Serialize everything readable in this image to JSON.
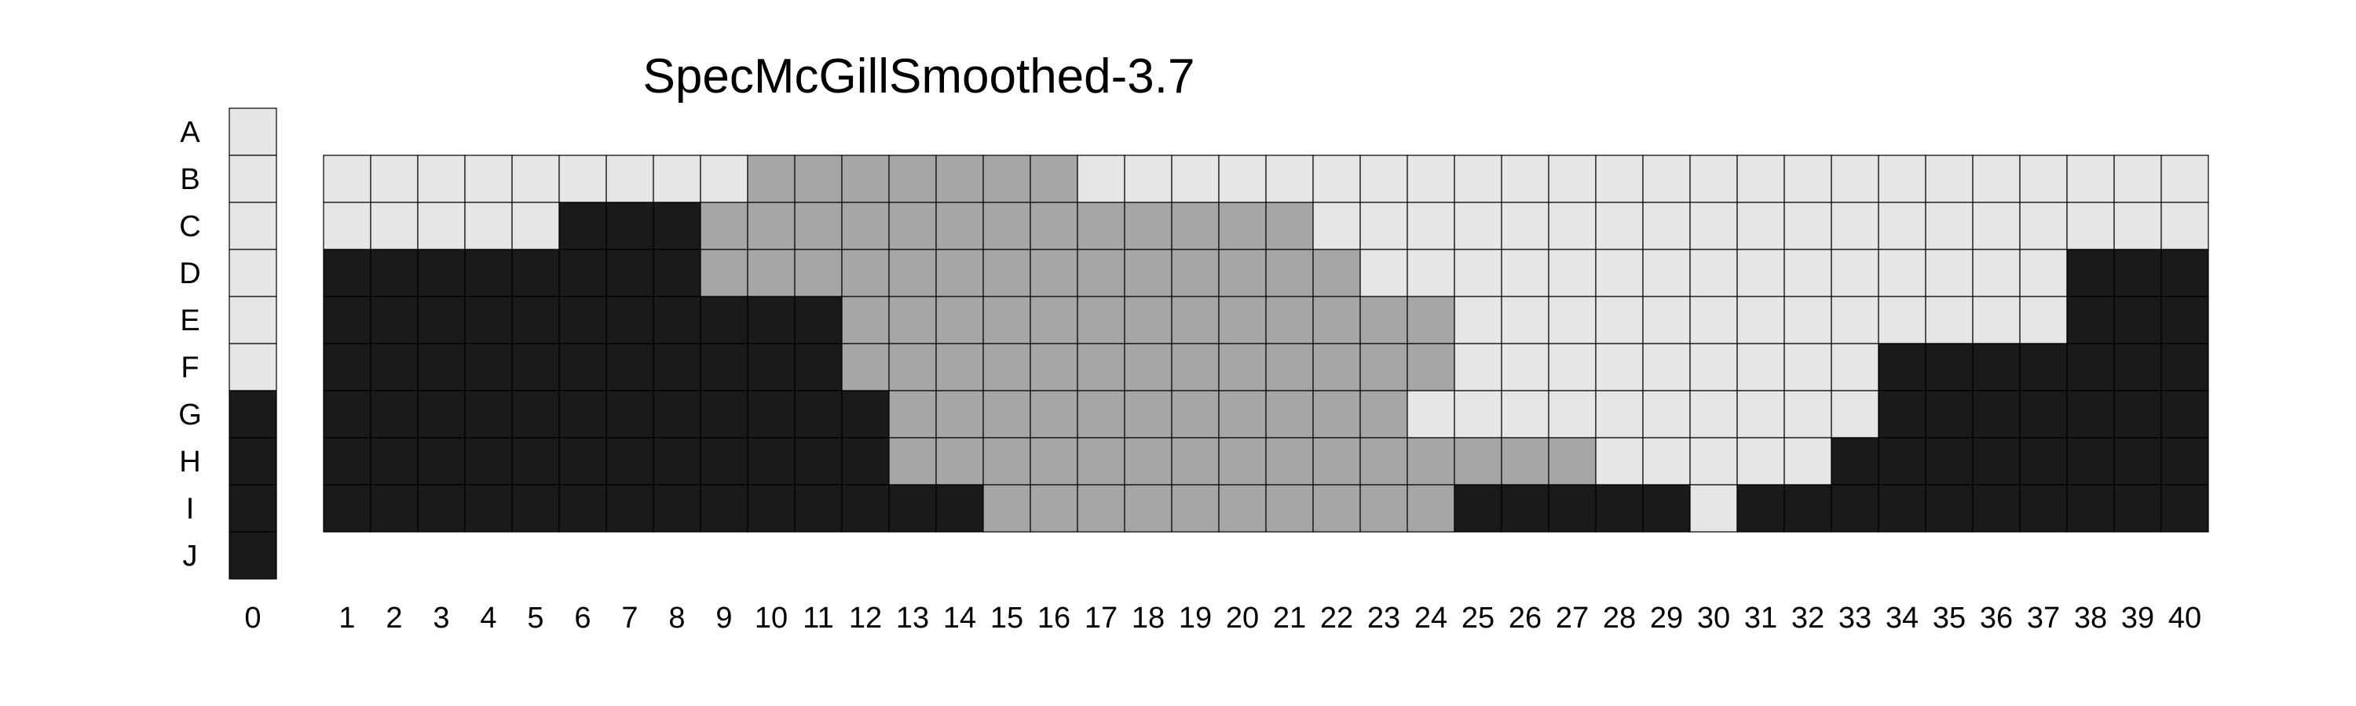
{
  "chart_data": {
    "type": "heatmap",
    "title": "SpecMcGillSmoothed-3.7",
    "xlabel": "",
    "ylabel": "",
    "rows": [
      "A",
      "B",
      "C",
      "D",
      "E",
      "F",
      "G",
      "H",
      "I",
      "J"
    ],
    "column_zero": {
      "label": "0",
      "values": [
        "L",
        "L",
        "L",
        "L",
        "L",
        "L",
        "D",
        "D",
        "D",
        "D"
      ]
    },
    "columns": [
      "1",
      "2",
      "3",
      "4",
      "5",
      "6",
      "7",
      "8",
      "9",
      "10",
      "11",
      "12",
      "13",
      "14",
      "15",
      "16",
      "17",
      "18",
      "19",
      "20",
      "21",
      "22",
      "23",
      "24",
      "25",
      "26",
      "27",
      "28",
      "29",
      "30",
      "31",
      "32",
      "33",
      "34",
      "35",
      "36",
      "37",
      "38",
      "39",
      "40"
    ],
    "grid_rows": [
      "B",
      "C",
      "D",
      "E",
      "F",
      "G",
      "H",
      "I"
    ],
    "legend": {
      "L": "#e6e6e6",
      "M": "#a6a6a6",
      "D": "#1a1a1a"
    },
    "grid": {
      "B": "LLLLLLLLLMMMMMMMLLLLLLLLLLLLLLLLLLLLLLLL",
      "C": "LLLLLDDDMMMMMMMMMMMMMLLLLLLLLLLLLLLLLLLL",
      "D": "DDDDDDDDMMMMMMMMMMMMMMLLLLLLLLLLLLLLLDDD",
      "E": "DDDDDDDDDDDMMMMMMMMMMMMMLLLLLLLLLLLLLDDD",
      "F": "DDDDDDDDDDDMMMMMMMMMMMMMLLLLLLLLLDDDDDDD",
      "G": "DDDDDDDDDDDDMMMMMMMMMMMLLLLLLLLLLDDDDDDD",
      "H": "DDDDDDDDDDDDMMMMMMMMMMMMMMMLLLLLDDDDDDDD",
      "I": "DDDDDDDDDDDDDDMMMMMMMMMMDDDDDLDDDDDDDDDD"
    }
  }
}
